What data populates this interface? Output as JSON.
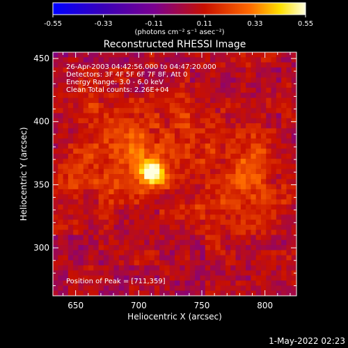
{
  "footer_timestamp": "1-May-2022 02:23",
  "colorbar": {
    "ticks": [
      "-0.55",
      "-0.33",
      "-0.11",
      "0.11",
      "0.33",
      "0.55"
    ],
    "units_label": "(photons cm⁻² s⁻¹ asec⁻²)",
    "range": [
      -0.55,
      0.55
    ],
    "colors": [
      "#0000ff",
      "#3a00b8",
      "#7a0090",
      "#c81000",
      "#ff6a00",
      "#ffe000",
      "#ffffe0"
    ]
  },
  "chart_data": {
    "type": "heatmap",
    "title": "Reconstructed RHESSI Image",
    "xlabel": "Heliocentric X (arcsec)",
    "ylabel": "Heliocentric Y (arcsec)",
    "xlim": [
      632,
      825
    ],
    "ylim": [
      262,
      455
    ],
    "xticks": [
      "650",
      "700",
      "750",
      "800"
    ],
    "yticks": [
      "300",
      "350",
      "400",
      "450"
    ],
    "annotations": [
      "26-Apr-2003 04:42:56.000 to 04:47:20.000",
      "Detectors: 3F 4F 5F 6F 7F 8F, Att 0",
      "Energy Range: 3.0 - 6.0 keV",
      "Clean    Total counts: 2.26E+04",
      "Position of Peak = [711,359]"
    ],
    "peak": {
      "x": 711,
      "y": 359,
      "value": 0.55
    },
    "background_level": -0.05,
    "emission_regions": [
      {
        "x": 711,
        "y": 359,
        "amp": 0.6,
        "sigma": 5
      },
      {
        "x": 711,
        "y": 359,
        "amp": 0.18,
        "sigma": 14
      },
      {
        "x": 690,
        "y": 380,
        "amp": 0.13,
        "sigma": 18
      },
      {
        "x": 740,
        "y": 395,
        "amp": 0.11,
        "sigma": 20
      },
      {
        "x": 670,
        "y": 400,
        "amp": 0.11,
        "sigma": 18
      },
      {
        "x": 785,
        "y": 370,
        "amp": 0.14,
        "sigma": 16
      },
      {
        "x": 795,
        "y": 335,
        "amp": 0.11,
        "sigma": 16
      },
      {
        "x": 760,
        "y": 330,
        "amp": 0.1,
        "sigma": 18
      },
      {
        "x": 680,
        "y": 345,
        "amp": 0.09,
        "sigma": 16
      },
      {
        "x": 650,
        "y": 360,
        "amp": 0.08,
        "sigma": 14
      }
    ]
  }
}
